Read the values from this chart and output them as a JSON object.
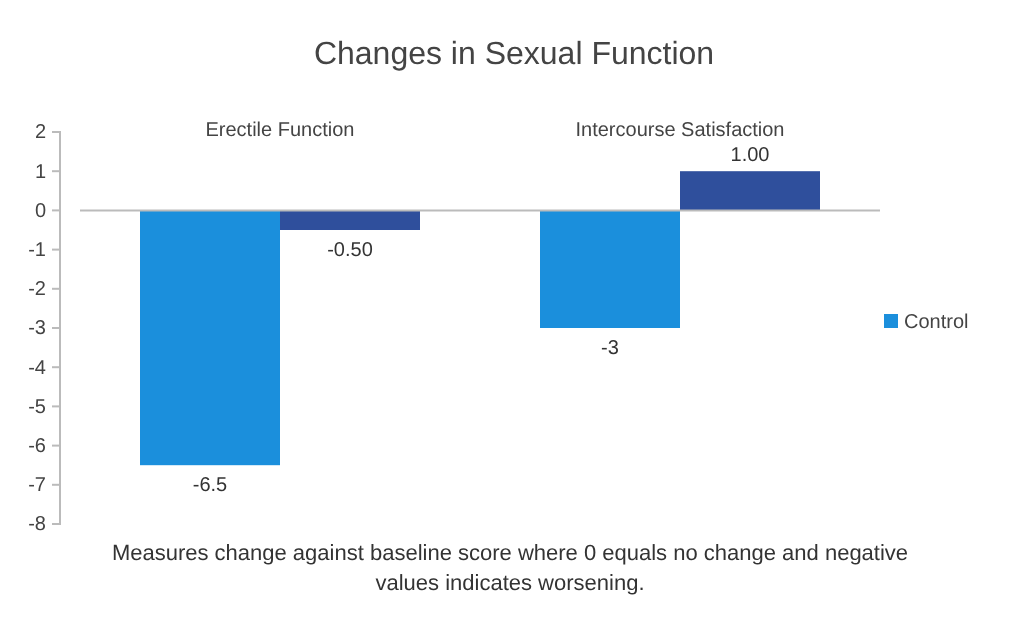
{
  "chart_data": {
    "type": "bar",
    "title": "Changes in Sexual Function",
    "categories": [
      "Erectile Function",
      "Intercourse Satisfaction"
    ],
    "series": [
      {
        "name": "Control",
        "color": "#1b8fdc",
        "values": [
          -6.5,
          -3
        ],
        "value_labels": [
          "-6.5",
          "-3"
        ]
      },
      {
        "color": "#2f4f9c",
        "values": [
          -0.5,
          1
        ],
        "value_labels": [
          "-0.50",
          "1.00"
        ]
      }
    ],
    "ylim": [
      -8,
      2
    ],
    "yticks": [
      -8,
      -7,
      -6,
      -5,
      -4,
      -3,
      -2,
      -1,
      0,
      1,
      2
    ],
    "legend": "right",
    "annotations": [
      "Measures change against baseline score where 0 equals no change and negative values indicates worsening."
    ]
  }
}
